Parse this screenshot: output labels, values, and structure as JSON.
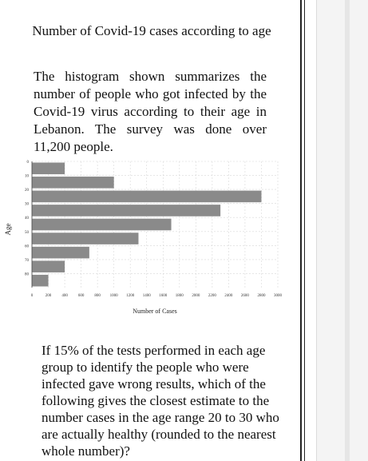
{
  "title": "Number of Covid-19 cases according to age",
  "intro": "The histogram shown summarizes the number of people who got infected by the Covid-19 virus according to their age in Lebanon. The survey was done over 11,200 people.",
  "question": "If 15% of the tests performed in each age group to identify the people who were infected gave wrong results, which of the following gives the closest estimate to the number cases in the age range 20 to 30 who are actually healthy (rounded to the nearest whole number)?",
  "chart_data": {
    "type": "bar",
    "orientation": "horizontal",
    "ylabel": "Age",
    "xlabel": "Number of Cases",
    "y_ticks": [
      "0",
      "10",
      "20",
      "30",
      "40",
      "50",
      "60",
      "70",
      "80"
    ],
    "x_ticks": [
      "0",
      "200",
      "400",
      "600",
      "800",
      "1000",
      "1200",
      "1400",
      "1600",
      "1800",
      "2000",
      "2200",
      "2400",
      "2600",
      "2800",
      "3000"
    ],
    "xlim": [
      0,
      3000
    ],
    "ylim": [
      0,
      90
    ],
    "bins": [
      {
        "from": 0,
        "to": 10,
        "value": 400
      },
      {
        "from": 10,
        "to": 20,
        "value": 1000
      },
      {
        "from": 20,
        "to": 30,
        "value": 2800
      },
      {
        "from": 30,
        "to": 40,
        "value": 2300
      },
      {
        "from": 40,
        "to": 50,
        "value": 1700
      },
      {
        "from": 50,
        "to": 60,
        "value": 1300
      },
      {
        "from": 60,
        "to": 70,
        "value": 700
      },
      {
        "from": 70,
        "to": 80,
        "value": 400
      },
      {
        "from": 80,
        "to": 90,
        "value": 200
      }
    ],
    "bar_color": "#8a8a8a",
    "grid": true
  }
}
